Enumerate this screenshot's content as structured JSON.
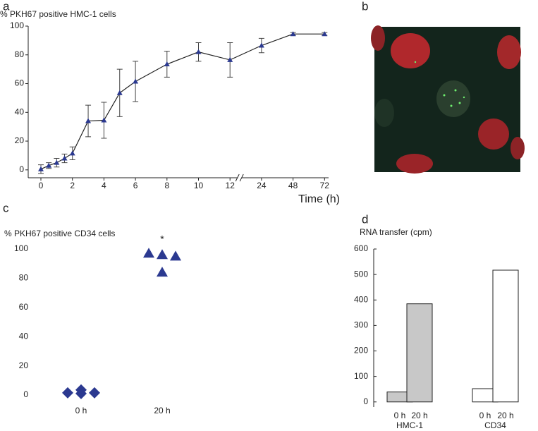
{
  "chart_data": [
    {
      "type": "line",
      "label": "a",
      "title": "% PKH67 positive HMC-1 cells",
      "xlabel": "Time (h)",
      "x": [
        0,
        0.5,
        1,
        1.5,
        2,
        3,
        4,
        5,
        6,
        8,
        10,
        12,
        24,
        48,
        72
      ],
      "values": [
        0.5,
        3,
        5,
        8,
        11.5,
        34,
        34.5,
        53.5,
        61.5,
        73.5,
        82,
        76.5,
        86.5,
        94.5,
        94.5
      ],
      "errors": [
        3,
        2,
        3,
        3,
        4.5,
        11,
        12.5,
        16.5,
        14,
        9,
        6.5,
        12,
        5,
        1,
        1
      ],
      "color": "#2b3990",
      "axis_break": 12,
      "xticks": [
        0,
        2,
        4,
        6,
        8,
        10,
        12,
        24,
        48,
        72
      ],
      "ylim": [
        -5,
        100
      ],
      "yticks": [
        0,
        20,
        40,
        60,
        80,
        100
      ]
    },
    {
      "type": "image",
      "label": "b"
    },
    {
      "type": "scatter",
      "label": "c",
      "title": "% PKH67 positive CD34 cells",
      "categories": [
        "0 h",
        "20 h"
      ],
      "points": [
        [
          1.5,
          3.5,
          1,
          1.5
        ],
        [
          97,
          96,
          84,
          95
        ]
      ],
      "markers": [
        "diamond",
        "triangle"
      ],
      "color": "#2b3990",
      "annotation": "*",
      "ylim": [
        0,
        100
      ],
      "yticks": [
        0,
        20,
        40,
        60,
        80,
        100
      ]
    },
    {
      "type": "bar",
      "label": "d",
      "title": "RNA transfer (cpm)",
      "categories": [
        "0 h",
        "20 h",
        "0 h",
        "20 h"
      ],
      "values": [
        39,
        385,
        52,
        517
      ],
      "groups": [
        "HMC-1",
        "CD34"
      ],
      "colors": [
        "#c8c8c8",
        "#ffffff"
      ],
      "ylim": [
        -20,
        600
      ],
      "yticks": [
        0,
        100,
        200,
        300,
        400,
        500,
        600
      ]
    }
  ]
}
